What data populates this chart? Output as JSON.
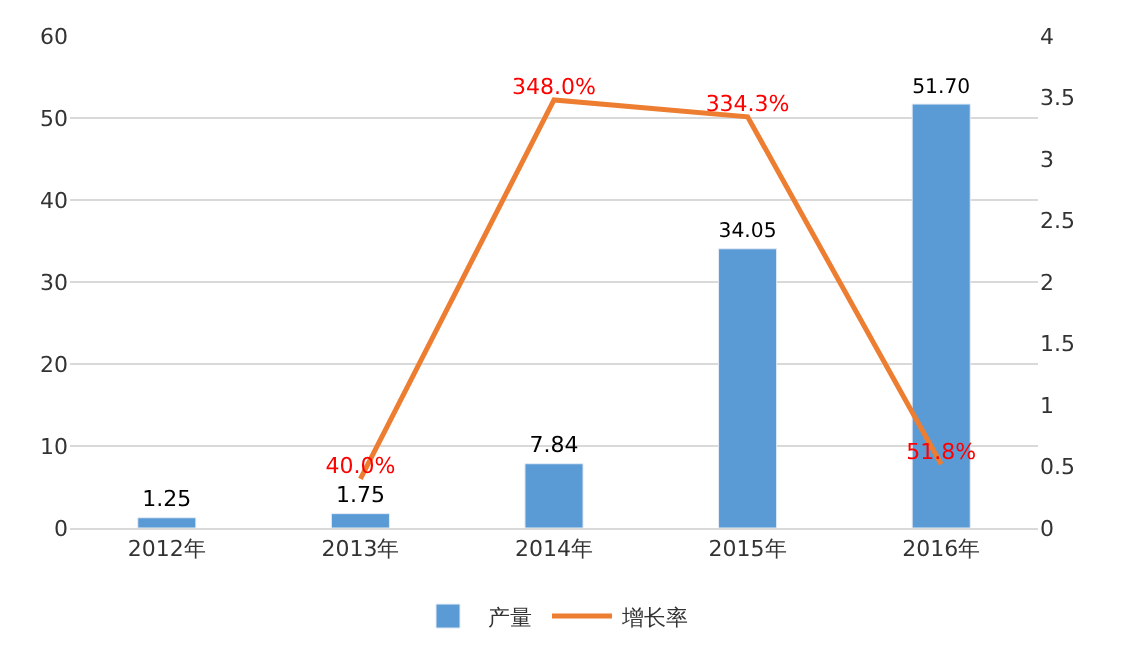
{
  "chart_data": {
    "type": "bar",
    "categories": [
      "2012年",
      "2013年",
      "2014年",
      "2015年",
      "2016年"
    ],
    "series": [
      {
        "name": "产量",
        "color": "#5b9bd5",
        "values": [
          1.25,
          1.75,
          7.84,
          34.05,
          51.7
        ],
        "value_labels": [
          "1.25",
          "1.75",
          "7.84",
          "34.05",
          "51.70"
        ]
      },
      {
        "name": "增长率",
        "type": "line",
        "axis": "y2",
        "color": "#ed7d31",
        "values": [
          null,
          0.4,
          3.48,
          3.343,
          0.518
        ],
        "value_labels": [
          null,
          "40.0%",
          "348.0%",
          "334.3%",
          "51.8%"
        ]
      }
    ],
    "ylim": [
      0,
      60
    ],
    "yticks": [
      0,
      10,
      20,
      30,
      40,
      50,
      60
    ],
    "y2lim": [
      0,
      4
    ],
    "y2ticks": [
      0,
      0.5,
      1,
      1.5,
      2,
      2.5,
      3,
      3.5,
      4
    ],
    "grid": "y",
    "legend": "bottom",
    "marker": "none",
    "line_style": "solid"
  }
}
